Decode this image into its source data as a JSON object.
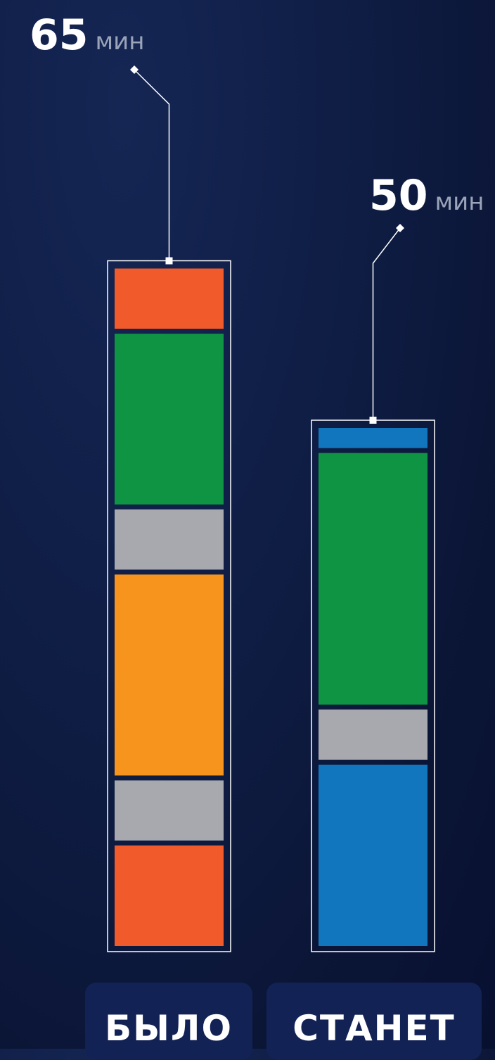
{
  "chart_data": {
    "type": "bar",
    "stacked": true,
    "unit": "мин",
    "categories": [
      "БЫЛО",
      "СТАНЕТ"
    ],
    "bars": [
      {
        "category": "БЫЛО",
        "total": 65,
        "total_label": "65",
        "segments": [
          {
            "value": 6,
            "color": "#f15a2b"
          },
          {
            "value": 17,
            "color": "#0f9443"
          },
          {
            "value": 6,
            "color": "#a7a9ae"
          },
          {
            "value": 20,
            "color": "#f7941e"
          },
          {
            "value": 6,
            "color": "#a7a9ae"
          },
          {
            "value": 10,
            "color": "#f15a2b"
          }
        ]
      },
      {
        "category": "СТАНЕТ",
        "total": 50,
        "total_label": "50",
        "segments": [
          {
            "value": 2,
            "color": "#1176be"
          },
          {
            "value": 25,
            "color": "#0f9443"
          },
          {
            "value": 5,
            "color": "#a7a9ae"
          },
          {
            "value": 18,
            "color": "#1176be"
          }
        ]
      }
    ]
  },
  "tabs": [
    {
      "label": "БЫЛО"
    },
    {
      "label": "СТАНЕТ"
    }
  ],
  "colors": {
    "text": "#ffffff",
    "unit_text": "#9aa3b8",
    "frame": "#ffffff"
  }
}
